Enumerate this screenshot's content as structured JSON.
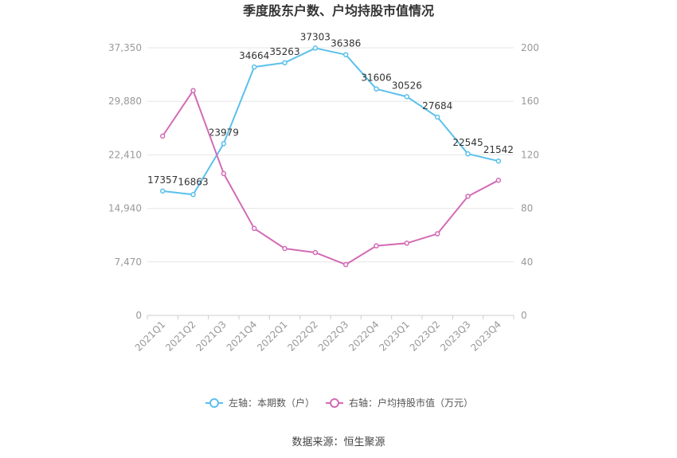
{
  "chart_data": {
    "type": "line",
    "title": "季度股东户数、户均持股市值情况",
    "categories": [
      "2021Q1",
      "2021Q2",
      "2021Q3",
      "2021Q4",
      "2022Q1",
      "2022Q2",
      "2022Q3",
      "2022Q4",
      "2023Q1",
      "2023Q2",
      "2023Q3",
      "2023Q4"
    ],
    "y_left": {
      "ticks": [
        "0",
        "7,470",
        "14,940",
        "22,410",
        "29,880",
        "37,350"
      ],
      "range": [
        0,
        37350
      ]
    },
    "y_right": {
      "ticks": [
        "0",
        "40",
        "80",
        "120",
        "160",
        "200"
      ],
      "range": [
        0,
        200
      ]
    },
    "series": [
      {
        "name": "左轴：本期数（户）",
        "axis": "left",
        "color": "#5bc0eb",
        "values": [
          17357,
          16863,
          23979,
          34664,
          35263,
          37303,
          36386,
          31606,
          30526,
          27684,
          22545,
          21542
        ],
        "labels": [
          "17357",
          "16863",
          "23979",
          "34664",
          "35263",
          "37303",
          "36386",
          "31606",
          "30526",
          "27684",
          "22545",
          "21542"
        ]
      },
      {
        "name": "右轴：户均持股市值（万元）",
        "axis": "right",
        "color": "#d36bb5",
        "values": [
          134,
          168,
          106,
          65,
          50,
          47,
          38,
          52,
          54,
          61,
          89,
          101
        ]
      }
    ],
    "grid": true,
    "legend": "bottom-center"
  },
  "source": "数据来源：恒生聚源"
}
